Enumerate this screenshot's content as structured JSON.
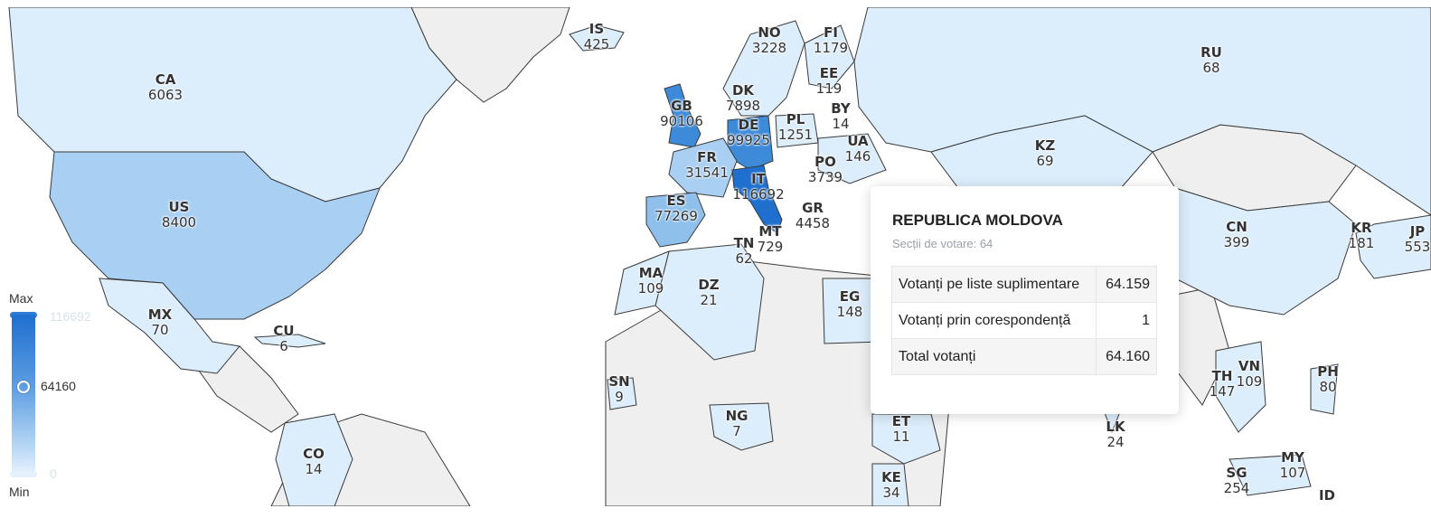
{
  "legend": {
    "max_label": "Max",
    "min_label": "Min",
    "max_value": "116692",
    "min_value": "0",
    "current_value": "64160",
    "current_fraction": 0.55
  },
  "colors": {
    "none": "#efefef",
    "low": "#dcedfb",
    "mid": "#a9cff2",
    "high": "#3d8ad9",
    "top": "#1f6fcf"
  },
  "tooltip": {
    "title": "REPUBLICA MOLDOVA",
    "subtitle": "Secții de votare: 64",
    "rows": [
      {
        "label": "Votanți pe liste suplimentare",
        "value": "64.159"
      },
      {
        "label": "Votanți prin corespondență",
        "value": "1"
      },
      {
        "label": "Total votanți",
        "value": "64.160"
      }
    ]
  },
  "countries": [
    {
      "code": "CA",
      "value": "6063"
    },
    {
      "code": "US",
      "value": "8400"
    },
    {
      "code": "MX",
      "value": "70"
    },
    {
      "code": "CU",
      "value": "6"
    },
    {
      "code": "CO",
      "value": "14"
    },
    {
      "code": "IS",
      "value": "425"
    },
    {
      "code": "NO",
      "value": "3228"
    },
    {
      "code": "FI",
      "value": "1179"
    },
    {
      "code": "EE",
      "value": "119"
    },
    {
      "code": "DK",
      "value": "7898"
    },
    {
      "code": "GB",
      "value": "90106"
    },
    {
      "code": "DE",
      "value": "99925"
    },
    {
      "code": "PL",
      "value": "1251"
    },
    {
      "code": "BY",
      "value": "14"
    },
    {
      "code": "UA",
      "value": "146"
    },
    {
      "code": "FR",
      "value": "31541"
    },
    {
      "code": "PO",
      "value": "3739"
    },
    {
      "code": "IT",
      "value": "116692"
    },
    {
      "code": "ES",
      "value": "77269"
    },
    {
      "code": "GR",
      "value": "4458"
    },
    {
      "code": "MT",
      "value": "729"
    },
    {
      "code": "TN",
      "value": "62"
    },
    {
      "code": "MA",
      "value": "109"
    },
    {
      "code": "DZ",
      "value": "21"
    },
    {
      "code": "EG",
      "value": "148"
    },
    {
      "code": "SN",
      "value": "9"
    },
    {
      "code": "NG",
      "value": "7"
    },
    {
      "code": "ET",
      "value": "11"
    },
    {
      "code": "KE",
      "value": "34"
    },
    {
      "code": "RU",
      "value": "68"
    },
    {
      "code": "KZ",
      "value": "69"
    },
    {
      "code": "CN",
      "value": "399"
    },
    {
      "code": "KR",
      "value": "181"
    },
    {
      "code": "JP",
      "value": "553"
    },
    {
      "code": "TH",
      "value": "147"
    },
    {
      "code": "VN",
      "value": "109"
    },
    {
      "code": "PH",
      "value": "80"
    },
    {
      "code": "LK",
      "value": "24"
    },
    {
      "code": "MY",
      "value": "107"
    },
    {
      "code": "SG",
      "value": "254"
    },
    {
      "code": "ID",
      "value": ""
    }
  ]
}
